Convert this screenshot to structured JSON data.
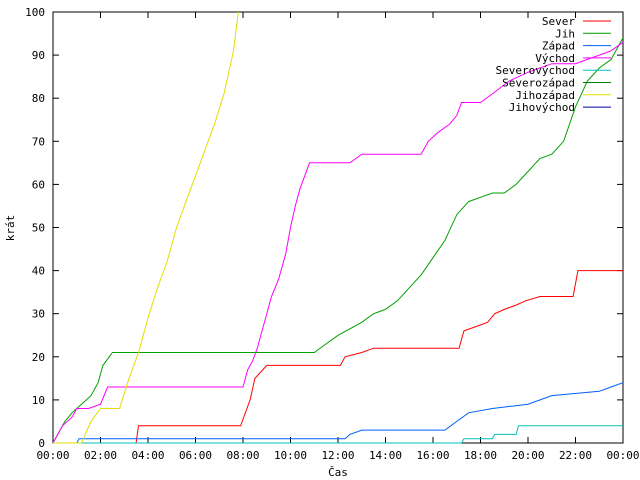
{
  "chart_data": {
    "type": "line",
    "title": "",
    "xlabel": "Čas",
    "ylabel": "krát",
    "xlim": [
      0,
      24
    ],
    "ylim": [
      0,
      100
    ],
    "x_ticks": [
      {
        "value": 0,
        "label": "00:00"
      },
      {
        "value": 2,
        "label": "02:00"
      },
      {
        "value": 4,
        "label": "04:00"
      },
      {
        "value": 6,
        "label": "06:00"
      },
      {
        "value": 8,
        "label": "08:00"
      },
      {
        "value": 10,
        "label": "10:00"
      },
      {
        "value": 12,
        "label": "12:00"
      },
      {
        "value": 14,
        "label": "14:00"
      },
      {
        "value": 16,
        "label": "16:00"
      },
      {
        "value": 18,
        "label": "18:00"
      },
      {
        "value": 20,
        "label": "20:00"
      },
      {
        "value": 22,
        "label": "22:00"
      },
      {
        "value": 24,
        "label": "00:00"
      }
    ],
    "y_ticks": [
      0,
      10,
      20,
      30,
      40,
      50,
      60,
      70,
      80,
      90,
      100
    ],
    "grid": false,
    "legend_position": "top-right",
    "series": [
      {
        "name": "Sever",
        "color": "#ff0000",
        "x": [
          0,
          3.5,
          3.6,
          7.9,
          8.3,
          8.5,
          9.0,
          12.1,
          12.3,
          13.0,
          13.5,
          17.1,
          17.3,
          17.8,
          18.3,
          18.6,
          19.0,
          19.5,
          19.9,
          20.5,
          21.9,
          22.1,
          24
        ],
        "y": [
          0,
          0,
          4,
          4,
          10,
          15,
          18,
          18,
          20,
          21,
          22,
          22,
          26,
          27,
          28,
          30,
          31,
          32,
          33,
          34,
          34,
          40,
          40
        ]
      },
      {
        "name": "Jih",
        "color": "#00a000",
        "x": [
          0,
          0.3,
          0.5,
          0.8,
          1.2,
          1.6,
          1.9,
          2.1,
          2.5,
          11.0,
          11.5,
          12.0,
          13.0,
          13.5,
          14.0,
          14.5,
          15.0,
          15.5,
          16.0,
          16.5,
          17.0,
          17.5,
          18.0,
          18.5,
          19.0,
          19.5,
          20.0,
          20.5,
          21.0,
          21.5,
          22.0,
          22.5,
          23.0,
          23.5,
          24
        ],
        "y": [
          0,
          3,
          5,
          7,
          9,
          11,
          14,
          18,
          21,
          21,
          23,
          25,
          28,
          30,
          31,
          33,
          36,
          39,
          43,
          47,
          53,
          56,
          57,
          58,
          58,
          60,
          63,
          66,
          67,
          70,
          78,
          84,
          87,
          89,
          94
        ]
      },
      {
        "name": "Západ",
        "color": "#0060ff",
        "x": [
          0,
          1.0,
          1.1,
          12.3,
          12.5,
          13.0,
          16.5,
          17.0,
          17.5,
          18.5,
          20.0,
          21.0,
          23.0,
          23.5,
          24
        ],
        "y": [
          0,
          0,
          1,
          1,
          2,
          3,
          3,
          5,
          7,
          8,
          9,
          11,
          12,
          13,
          14
        ]
      },
      {
        "name": "Východ",
        "color": "#ff00ff",
        "x": [
          0,
          0.4,
          0.8,
          1.0,
          1.5,
          2.0,
          2.3,
          8.0,
          8.2,
          8.4,
          8.6,
          8.8,
          9.0,
          9.2,
          9.5,
          9.8,
          10.0,
          10.2,
          10.4,
          10.6,
          10.8,
          11.0,
          12.5,
          13.0,
          15.5,
          15.8,
          16.2,
          16.7,
          17.0,
          17.2,
          18.0,
          18.5,
          19.2,
          20.0,
          20.5,
          21.0,
          22.0,
          22.5,
          23.0,
          23.5,
          24
        ],
        "y": [
          0,
          4,
          6,
          8,
          8,
          9,
          13,
          13,
          17,
          19,
          22,
          26,
          30,
          34,
          38,
          44,
          50,
          55,
          59,
          62,
          65,
          65,
          65,
          67,
          67,
          70,
          72,
          74,
          76,
          79,
          79,
          81,
          84,
          86,
          87,
          88,
          88,
          89,
          90,
          91,
          93
        ]
      },
      {
        "name": "Severovýchod",
        "color": "#00c0c0",
        "x": [
          0,
          17.2,
          17.3,
          18.5,
          18.6,
          19.5,
          19.6,
          24
        ],
        "y": [
          0,
          0,
          1,
          1,
          2,
          2,
          4,
          4
        ]
      },
      {
        "name": "Severozápad",
        "color": "#008000",
        "x": [],
        "y": []
      },
      {
        "name": "Jihozápad",
        "color": "#e0e000",
        "x": [
          0,
          1.2,
          1.6,
          2.0,
          2.8,
          3.2,
          3.6,
          4.0,
          4.4,
          4.8,
          5.2,
          5.6,
          6.0,
          6.4,
          6.8,
          7.2,
          7.6,
          7.8
        ],
        "y": [
          0,
          0,
          5,
          8,
          8,
          15,
          21,
          29,
          36,
          42,
          50,
          56,
          62,
          68,
          74,
          81,
          91,
          100
        ]
      },
      {
        "name": "Jihovýchod",
        "color": "#0000a0",
        "x": [],
        "y": []
      }
    ]
  }
}
